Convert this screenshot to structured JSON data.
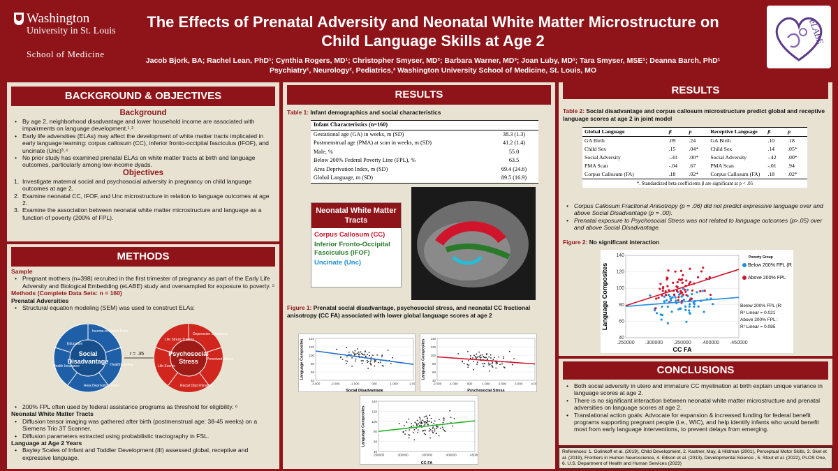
{
  "header": {
    "institution_line1": "Washington",
    "institution_line2": "University in St. Louis",
    "institution_line3": "School of Medicine",
    "title": "The Effects of Prenatal Adversity and Neonatal White Matter Microstructure on Child Language Skills at Age 2",
    "authors": "Jacob Bjork, BA; Rachel Lean, PhD¹; Cynthia Rogers, MD¹; Christopher Smyser, MD²; Barbara Warner, MD³; Joan Luby, MD¹; Tara Smyser, MSE¹; Deanna Barch, PhD¹",
    "affiliations": "Psychiatry¹, Neurology², Pediatrics,³ Washington University School of Medicine, St. Louis, MO",
    "logo_text": "eLABE"
  },
  "background": {
    "heading": "BACKGROUND & OBJECTIVES",
    "sub1": "Background",
    "bullets": [
      "By age 2, neighborhood disadvantage and lower household income are associated with impairments on language development.¹˒²",
      "Early life adversities (ELAs) may affect the development of white matter tracts implicated in early language learning: corpus callosum (CC), inferior fronto-occipital fasciculus (IFOF), and uncinate (Unc)³˒⁴",
      "No prior study has examined prenatal ELAs on white matter tracts at birth and language outcomes, particularly among low-income dyads."
    ],
    "sub2": "Objectives",
    "objectives": [
      "Investigate maternal social and psychosocial adversity in pregnancy on child language outcomes at age 2.",
      "Examine neonatal CC, IFOF, and Unc microstructure in relation to language outcomes at age 2.",
      "Examine the association between neonatal white matter microstructure and language as a function of poverty (200% of FPL)."
    ]
  },
  "methods": {
    "heading": "METHODS",
    "sample_h": "Sample",
    "sample_bullet": "Pregnant mothers (n=398) recruited in the first trimester of pregnancy as part of the Early Life Adversity and Biological Embedding (eLABE) study and oversampled for exposure to poverty. ⁵",
    "methods_h": "Methods (Complete Data Sets: n = 160)",
    "prenatal_h": "Prenatal Adversities",
    "sem_bullet": "Structural equation modeling (SEM) was used to construct ELAs:",
    "social_label": "Social Disadvantage",
    "social_segments": [
      "Education",
      "Income-to-Needs Ratio",
      "Healthy Eating",
      "Area Deprivation Index",
      "Health Insurance"
    ],
    "psych_label": "Psychosocial Stress",
    "psych_segments": [
      "Depression Symptoms",
      "Perceived Stress",
      "Racial Discrimination",
      "Life Events",
      "Life Stress Trauma"
    ],
    "corr_label": "r = .35",
    "fpl_bullet": "200% FPL often used by federal assistance programs as threshold for eligibility. ⁶",
    "wm_h": "Neonatal White Matter Tracts",
    "wm_bullets": [
      "Diffusion tensor imaging was gathered after birth (postmenstrual age: 38-45 weeks) on a Siemens Trio 3T Scanner.",
      "Diffusion parameters extracted using probabilistic tractography in FSL."
    ],
    "lang_h": "Language at Age 2 Years",
    "lang_bullet": "Bayley Scales of Infant and Toddler Development (III) assessed global, receptive and expressive language."
  },
  "results1": {
    "heading": "RESULTS",
    "table1_label": "Table 1:",
    "table1_caption": "Infant demographics and social characteristics",
    "table1_header": "Infant Characteristics (n=160)",
    "table1_rows": [
      [
        "Gestational age (GA) in weeks, m (SD)",
        "38.3 (1.3)"
      ],
      [
        "Postmenstrual age (PMA) at scan in weeks, m (SD)",
        "41.2 (1.4)"
      ],
      [
        "Male, %",
        "55.0"
      ],
      [
        "Below 200% Federal Poverty Line (FPL), %",
        "63.5"
      ],
      [
        "Area Deprivation Index, m (SD)",
        "69.4 (24.6)"
      ],
      [
        "Global Language, m (SD)",
        "89.5 (16.9)"
      ]
    ],
    "tract_title": "Neonatal White Matter Tracts",
    "tract_cc": "Corpus Callosum (CC)",
    "tract_ifof": "Inferior Fronto-Occipital Fasciculus (IFOF)",
    "tract_unc": "Uncinate (Unc)",
    "fig1_label": "Figure 1:",
    "fig1_caption": "Prenatal social disadvantage, psychosocial stress, and neonatal CC fractional anisotropy (CC FA) associated with lower global language scores at age 2",
    "plot_ylabel": "Language Composites",
    "plot1_xlabel": "Social Disadvantage",
    "plot2_xlabel": "Psychosocial Stress",
    "plot3_xlabel": "CC FA"
  },
  "results2": {
    "heading": "RESULTS",
    "table2_label": "Table 2:",
    "table2_caption": "Social disadvantage and corpus callosum microstructure predict global and receptive language scores at age 2 in joint model",
    "t2_head": [
      "Global Language",
      "β",
      "p",
      "Receptive Language",
      "β",
      "p"
    ],
    "t2_rows": [
      [
        "GA Birth",
        ".09",
        ".24",
        "GA Birth",
        ".10",
        ".18"
      ],
      [
        "Child Sex",
        ".15",
        ".04*",
        "Child Sex",
        ".14",
        ".05*"
      ],
      [
        "Social Adversity",
        "-.41",
        ".00*",
        "Social Adversity",
        "-.42",
        ".00*"
      ],
      [
        "PMA Scan",
        "-.04",
        ".67",
        "PMA Scan",
        "-.01",
        ".94"
      ],
      [
        "Corpus Callosum (FA)",
        ".18",
        ".02*",
        "Corpus Callosum (FA)",
        ".18",
        ".02*"
      ]
    ],
    "t2_note": "*. Standardized beta coefficients β are significant at p < .05",
    "bullets": [
      "Corpus Callosum Fractional Anisotropy (p = .06) did not predict expressive language over and above Social Disadvantage (p = .00).",
      "Prenatal exposure to Psychosocial Stress was not related to language outcomes (p>.05) over and above Social Disadvantage."
    ],
    "fig2_label": "Figure 2:",
    "fig2_caption": "No significant interaction",
    "fig2_ylabel": "Language Composites",
    "fig2_xlabel": "CC FA",
    "fig2_legend_title": "Poverty Group",
    "fig2_legend_below": "Below 200% FPL (R",
    "fig2_legend_above": "Above 200% FPL",
    "fig2_note1": "Below 200% FPL (R:",
    "fig2_note2": "R² Linear = 0.021",
    "fig2_note3": "Above 200% FPL :",
    "fig2_note4": "R² Linear = 0.085"
  },
  "conclusions": {
    "heading": "CONCLUSIONS",
    "bullets": [
      "Both social adversity in utero and immature CC myelination at birth explain unique variance in language scores at age 2.",
      "There is no significant interaction between neonatal white matter microstructure and prenatal adversities on language scores at age 2.",
      "Translational action goals: Advocate for expansion & increased funding for federal benefit programs supporting pregnant people (i.e., WIC), and help identify infants who would benefit most from early language interventions, to prevent delays from emerging."
    ]
  },
  "references": {
    "text": "References: 1. Golinkoff et al. (2019), Child Development, 2. Kastner, May, & Hildman (2001), Perceptual Motor Skills, 3. Sket et al. (2019), Frontiers in Human Neuroscience, 4. Ellison et al. (2013), Developmental Science , 5. Stout et al. (2022), PLOS One, 6. U.S. Department of Health and Human Services (2023)"
  },
  "chart_data": [
    {
      "type": "scatter",
      "title": "",
      "xlabel": "Social Disadvantage",
      "ylabel": "Language Composites",
      "xlim": [
        -3.0,
        2.0
      ],
      "ylim": [
        40,
        140
      ],
      "xticks": [
        "-3.000",
        "-2.000",
        "-1.000",
        "000",
        "1.000",
        "2.000"
      ],
      "yticks": [
        "40",
        "60",
        "80",
        "100",
        "120",
        "140"
      ],
      "fit": {
        "x": [
          -3.0,
          2.0
        ],
        "y": [
          110,
          78
        ]
      },
      "fit_color": "#1f6fd0",
      "grid": true
    },
    {
      "type": "scatter",
      "title": "",
      "xlabel": "Psychosocial Stress",
      "ylabel": "Language Composites",
      "xlim": [
        -2.0,
        4.0
      ],
      "ylim": [
        40,
        140
      ],
      "xticks": [
        "-2.000",
        "-1.000",
        "000",
        "1.000",
        "2.000",
        "3.000",
        "4.000"
      ],
      "yticks": [
        "40",
        "60",
        "80",
        "100",
        "120",
        "140"
      ],
      "fit": {
        "x": [
          -2.0,
          4.0
        ],
        "y": [
          96,
          79
        ]
      },
      "fit_color": "#d0142b",
      "grid": true
    },
    {
      "type": "scatter",
      "title": "",
      "xlabel": "CC FA",
      "ylabel": "Language Composites",
      "xlim": [
        0.25,
        0.45
      ],
      "ylim": [
        40,
        140
      ],
      "xticks": [
        ".250000",
        ".300000",
        ".350000",
        ".400000",
        ".450000"
      ],
      "yticks": [
        "40",
        "60",
        "80",
        "100",
        "120",
        "140"
      ],
      "fit": {
        "x": [
          0.25,
          0.45
        ],
        "y": [
          80,
          101
        ]
      },
      "fit_color": "#2bb52b",
      "grid": true
    },
    {
      "type": "scatter",
      "title": "",
      "xlabel": "CC FA",
      "ylabel": "Language Composites",
      "xlim": [
        0.25,
        0.45
      ],
      "ylim": [
        40,
        140
      ],
      "xticks": [
        ".250000",
        ".300000",
        ".350000",
        ".400000",
        ".450000"
      ],
      "yticks": [
        "40",
        "60",
        "80",
        "100",
        "120",
        "140"
      ],
      "series": [
        {
          "name": "Below 200% FPL (R",
          "color": "#1f8fe0",
          "fit": {
            "x": [
              0.25,
              0.45
            ],
            "y": [
              78,
              89
            ]
          }
        },
        {
          "name": "Above 200% FPL",
          "color": "#d0142b",
          "fit": {
            "x": [
              0.25,
              0.45
            ],
            "y": [
              79,
              123
            ]
          }
        }
      ],
      "grid": true
    }
  ]
}
